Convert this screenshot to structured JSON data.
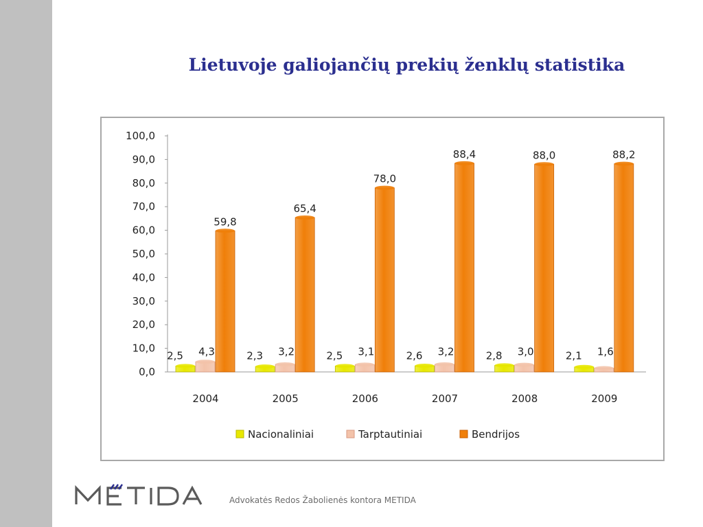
{
  "slide": {
    "title": "Lietuvoje galiojančių prekių ženklų statistika"
  },
  "chart_data": {
    "type": "bar",
    "categories": [
      "2004",
      "2005",
      "2006",
      "2007",
      "2008",
      "2009"
    ],
    "series": [
      {
        "name": "Nacionaliniai",
        "values": [
          2.5,
          2.3,
          2.5,
          2.6,
          2.8,
          2.1
        ],
        "labels": [
          "2,5",
          "2,3",
          "2,5",
          "2,6",
          "2,8",
          "2,1"
        ],
        "color": "#e8e800"
      },
      {
        "name": "Tarptautiniai",
        "values": [
          4.3,
          3.2,
          3.1,
          3.2,
          3.0,
          1.6
        ],
        "labels": [
          "4,3",
          "3,2",
          "3,1",
          "3,2",
          "3,0",
          "1,6"
        ],
        "color": "#f3c3aa"
      },
      {
        "name": "Bendrijos",
        "values": [
          59.8,
          65.4,
          78.0,
          88.4,
          88.0,
          88.2
        ],
        "labels": [
          "59,8",
          "65,4",
          "78,0",
          "88,4",
          "88,0",
          "88,2"
        ],
        "color": "#f07f09"
      }
    ],
    "y_ticks": [
      "0,0",
      "10,0",
      "20,0",
      "30,0",
      "40,0",
      "50,0",
      "60,0",
      "70,0",
      "80,0",
      "90,0",
      "100,0"
    ],
    "ylim": [
      0,
      100
    ],
    "legend_position": "bottom",
    "grid": false
  },
  "footer": {
    "logo_text": "METIDA",
    "text": "Advokatės Redos Žabolienės kontora METIDA"
  }
}
